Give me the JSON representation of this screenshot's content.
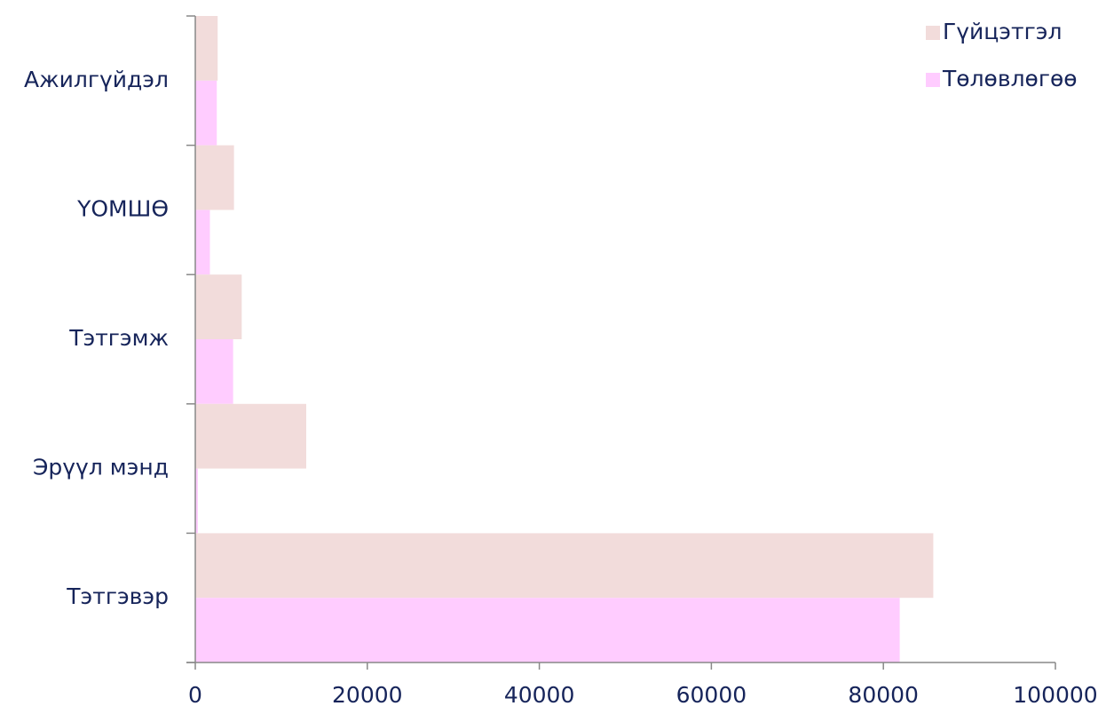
{
  "chart_data": {
    "type": "barh",
    "categories": [
      "Ажилгүйдэл",
      "ҮОМШӨ",
      "Тэтгэмж",
      "Эрүүл мэнд",
      "Тэтгэвэр"
    ],
    "series": [
      {
        "name": "Гүйцэтгэл",
        "color": "#f2dcdb",
        "values": [
          2600,
          4500,
          5400,
          12900,
          85800
        ]
      },
      {
        "name": "Төлөвлөгөө",
        "color": "#ffccff",
        "values": [
          2500,
          1700,
          4400,
          300,
          81900
        ]
      }
    ],
    "xlim": [
      0,
      100000
    ],
    "xticks": [
      0,
      20000,
      40000,
      60000,
      80000,
      100000
    ],
    "legend": "upper right"
  }
}
